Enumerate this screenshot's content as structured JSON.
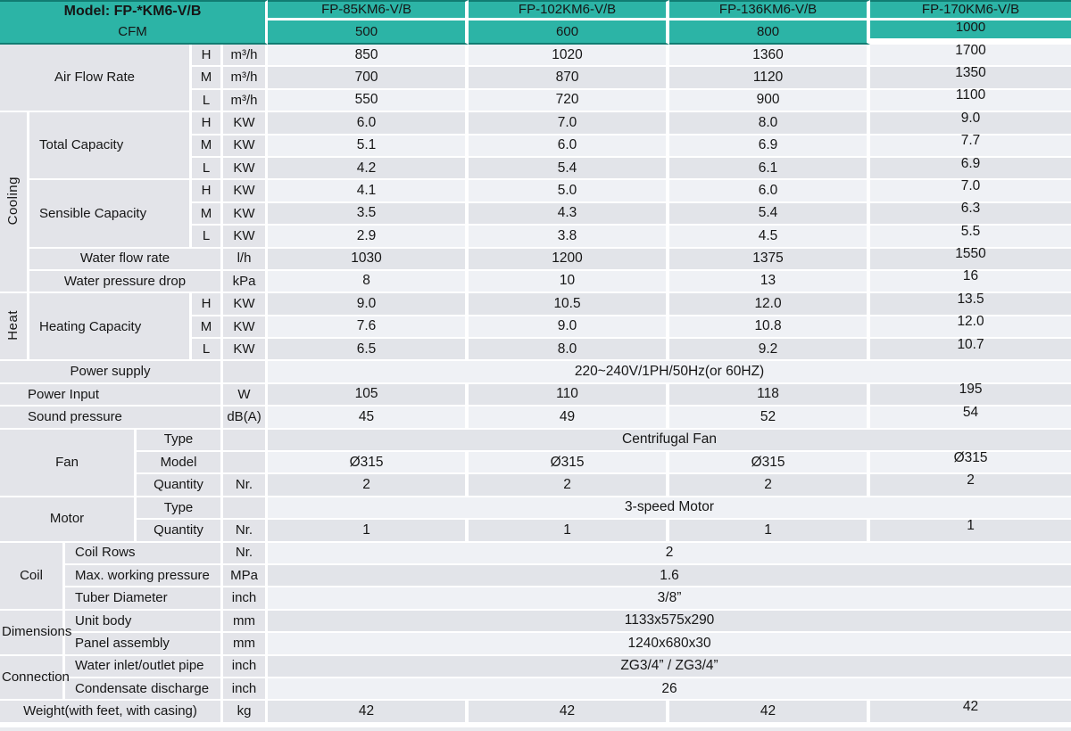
{
  "header": {
    "model_label": "Model: FP-*KM6-V/B",
    "cfm_label": "CFM",
    "models": [
      "FP-85KM6-V/B",
      "FP-102KM6-V/B",
      "FP-136KM6-V/B",
      "FP-170KM6-V/B"
    ],
    "cfm_values": [
      "500",
      "600",
      "800",
      "1000"
    ]
  },
  "colors": {
    "teal": "#2cb4a6",
    "dark_teal_line": "#117c72",
    "label_gray": "#e3e4e9",
    "row_light": "#eff1f5",
    "row_dark": "#e2e4e9"
  },
  "spec_rows": [
    {
      "key": "air-flow-h",
      "shade": "light",
      "cells": [
        {
          "t": "Air Flow Rate",
          "cs": 4,
          "rs": 3,
          "cls": "lab",
          "name": "group-air-flow-rate"
        },
        {
          "t": "H",
          "cls": "lab",
          "name": "speed-h"
        },
        {
          "t": "m³/h",
          "cls": "lab",
          "name": "unit-m3h"
        }
      ],
      "values": [
        "850",
        "1020",
        "1360",
        "1700"
      ]
    },
    {
      "key": "air-flow-m",
      "shade": "dark",
      "cells": [
        {
          "t": "M",
          "cls": "lab",
          "name": "speed-m"
        },
        {
          "t": "m³/h",
          "cls": "lab",
          "name": "unit-m3h"
        }
      ],
      "values": [
        "700",
        "870",
        "1120",
        "1350"
      ]
    },
    {
      "key": "air-flow-l",
      "shade": "light",
      "cells": [
        {
          "t": "L",
          "cls": "lab",
          "name": "speed-l"
        },
        {
          "t": "m³/h",
          "cls": "lab",
          "name": "unit-m3h"
        }
      ],
      "values": [
        "550",
        "720",
        "900",
        "1100"
      ]
    },
    {
      "key": "total-capacity-h",
      "shade": "dark",
      "cells": [
        {
          "t": "Cooling",
          "rs": 8,
          "cls": "lab rot",
          "name": "section-cooling"
        },
        {
          "t": "Total Capacity",
          "cs": 3,
          "rs": 3,
          "cls": "lab tl",
          "name": "group-total-capacity"
        },
        {
          "t": "H",
          "cls": "lab",
          "name": "speed-h"
        },
        {
          "t": "KW",
          "cls": "lab",
          "name": "unit-kw"
        }
      ],
      "values": [
        "6.0",
        "7.0",
        "8.0",
        "9.0"
      ]
    },
    {
      "key": "total-capacity-m",
      "shade": "light",
      "cells": [
        {
          "t": "M",
          "cls": "lab",
          "name": "speed-m"
        },
        {
          "t": "KW",
          "cls": "lab",
          "name": "unit-kw"
        }
      ],
      "values": [
        "5.1",
        "6.0",
        "6.9",
        "7.7"
      ]
    },
    {
      "key": "total-capacity-l",
      "shade": "dark",
      "cells": [
        {
          "t": "L",
          "cls": "lab",
          "name": "speed-l"
        },
        {
          "t": "KW",
          "cls": "lab",
          "name": "unit-kw"
        }
      ],
      "values": [
        "4.2",
        "5.4",
        "6.1",
        "6.9"
      ]
    },
    {
      "key": "sensible-capacity-h",
      "shade": "light",
      "cells": [
        {
          "t": "Sensible Capacity",
          "cs": 3,
          "rs": 3,
          "cls": "lab tl",
          "name": "group-sensible-capacity"
        },
        {
          "t": "H",
          "cls": "lab",
          "name": "speed-h"
        },
        {
          "t": "KW",
          "cls": "lab",
          "name": "unit-kw"
        }
      ],
      "values": [
        "4.1",
        "5.0",
        "6.0",
        "7.0"
      ]
    },
    {
      "key": "sensible-capacity-m",
      "shade": "dark",
      "cells": [
        {
          "t": "M",
          "cls": "lab",
          "name": "speed-m"
        },
        {
          "t": "KW",
          "cls": "lab",
          "name": "unit-kw"
        }
      ],
      "values": [
        "3.5",
        "4.3",
        "5.4",
        "6.3"
      ]
    },
    {
      "key": "sensible-capacity-l",
      "shade": "light",
      "cells": [
        {
          "t": "L",
          "cls": "lab",
          "name": "speed-l"
        },
        {
          "t": "KW",
          "cls": "lab",
          "name": "unit-kw"
        }
      ],
      "values": [
        "2.9",
        "3.8",
        "4.5",
        "5.5"
      ]
    },
    {
      "key": "water-flow-rate",
      "shade": "dark",
      "cells": [
        {
          "t": "Water flow rate",
          "cs": 4,
          "cls": "lab",
          "name": "row-water-flow-rate"
        },
        {
          "t": "l/h",
          "cls": "lab",
          "name": "unit-lh"
        }
      ],
      "values": [
        "1030",
        "1200",
        "1375",
        "1550"
      ]
    },
    {
      "key": "water-pressure-drop",
      "shade": "light",
      "cells": [
        {
          "t": "Water pressure drop",
          "cs": 4,
          "cls": "lab",
          "name": "row-water-pressure-drop"
        },
        {
          "t": "kPa",
          "cls": "lab",
          "name": "unit-kpa"
        }
      ],
      "values": [
        "8",
        "10",
        "13",
        "16"
      ]
    },
    {
      "key": "heating-capacity-h",
      "shade": "dark",
      "cells": [
        {
          "t": "Heat",
          "rs": 3,
          "cls": "lab rot",
          "name": "section-heat"
        },
        {
          "t": "Heating Capacity",
          "cs": 3,
          "rs": 3,
          "cls": "lab tl",
          "name": "group-heating-capacity"
        },
        {
          "t": "H",
          "cls": "lab",
          "name": "speed-h"
        },
        {
          "t": "KW",
          "cls": "lab",
          "name": "unit-kw"
        }
      ],
      "values": [
        "9.0",
        "10.5",
        "12.0",
        "13.5"
      ]
    },
    {
      "key": "heating-capacity-m",
      "shade": "light",
      "cells": [
        {
          "t": "M",
          "cls": "lab",
          "name": "speed-m"
        },
        {
          "t": "KW",
          "cls": "lab",
          "name": "unit-kw"
        }
      ],
      "values": [
        "7.6",
        "9.0",
        "10.8",
        "12.0"
      ]
    },
    {
      "key": "heating-capacity-l",
      "shade": "dark",
      "cells": [
        {
          "t": "L",
          "cls": "lab",
          "name": "speed-l"
        },
        {
          "t": "KW",
          "cls": "lab",
          "name": "unit-kw"
        }
      ],
      "values": [
        "6.5",
        "8.0",
        "9.2",
        "10.7"
      ]
    },
    {
      "key": "power-supply",
      "shade": "light",
      "cells": [
        {
          "t": "Power supply",
          "cs": 5,
          "cls": "lab",
          "name": "row-power-supply"
        },
        {
          "t": "",
          "cls": "lab",
          "name": "unit-empty"
        }
      ],
      "merged": "220~240V/1PH/50Hz(or 60HZ)",
      "merged_name": "value-power-supply"
    },
    {
      "key": "power-input",
      "shade": "dark",
      "cells": [
        {
          "t": "Power Input",
          "cs": 5,
          "cls": "lab tlp",
          "name": "row-power-input"
        },
        {
          "t": "W",
          "cls": "lab",
          "name": "unit-w"
        }
      ],
      "values": [
        "105",
        "110",
        "118",
        "195"
      ]
    },
    {
      "key": "sound-pressure",
      "shade": "light",
      "cells": [
        {
          "t": "Sound pressure",
          "cs": 5,
          "cls": "lab tlp",
          "name": "row-sound-pressure"
        },
        {
          "t": "dB(A)",
          "cls": "lab",
          "name": "unit-dba"
        }
      ],
      "values": [
        "45",
        "49",
        "52",
        "54"
      ]
    },
    {
      "key": "fan-type",
      "shade": "dark",
      "cells": [
        {
          "t": "Fan",
          "cs": 3,
          "rs": 3,
          "cls": "lab",
          "name": "section-fan"
        },
        {
          "t": "Type",
          "cs": 2,
          "cls": "lab",
          "name": "row-fan-type"
        },
        {
          "t": "",
          "cls": "lab",
          "name": "unit-empty"
        }
      ],
      "merged": "Centrifugal Fan",
      "merged_name": "value-fan-type"
    },
    {
      "key": "fan-model",
      "shade": "light",
      "cells": [
        {
          "t": "Model",
          "cs": 2,
          "cls": "lab",
          "name": "row-fan-model"
        },
        {
          "t": "",
          "cls": "lab",
          "name": "unit-empty"
        }
      ],
      "values": [
        "Ø315",
        "Ø315",
        "Ø315",
        "Ø315"
      ]
    },
    {
      "key": "fan-quantity",
      "shade": "dark",
      "cells": [
        {
          "t": "Quantity",
          "cs": 2,
          "cls": "lab",
          "name": "row-fan-quantity"
        },
        {
          "t": "Nr.",
          "cls": "lab",
          "name": "unit-nr"
        }
      ],
      "values": [
        "2",
        "2",
        "2",
        "2"
      ]
    },
    {
      "key": "motor-type",
      "shade": "light",
      "cells": [
        {
          "t": "Motor",
          "cs": 3,
          "rs": 2,
          "cls": "lab",
          "name": "section-motor"
        },
        {
          "t": "Type",
          "cs": 2,
          "cls": "lab",
          "name": "row-motor-type"
        },
        {
          "t": "",
          "cls": "lab",
          "name": "unit-empty"
        }
      ],
      "merged": "3-speed Motor",
      "merged_name": "value-motor-type"
    },
    {
      "key": "motor-quantity",
      "shade": "dark",
      "cells": [
        {
          "t": "Quantity",
          "cs": 2,
          "cls": "lab",
          "name": "row-motor-quantity"
        },
        {
          "t": "Nr.",
          "cls": "lab",
          "name": "unit-nr"
        }
      ],
      "values": [
        "1",
        "1",
        "1",
        "1"
      ]
    },
    {
      "key": "coil-rows",
      "shade": "light",
      "cells": [
        {
          "t": "Coil",
          "cs": 2,
          "rs": 3,
          "cls": "lab",
          "name": "section-coil"
        },
        {
          "t": "Coil Rows",
          "cs": 3,
          "cls": "lab tl",
          "name": "row-coil-rows"
        },
        {
          "t": "Nr.",
          "cls": "lab",
          "name": "unit-nr"
        }
      ],
      "merged": "2",
      "merged_name": "value-coil-rows"
    },
    {
      "key": "max-working-pressure",
      "shade": "dark",
      "cells": [
        {
          "t": "Max. working pressure",
          "cs": 3,
          "cls": "lab tl",
          "name": "row-max-working-pressure"
        },
        {
          "t": "MPa",
          "cls": "lab",
          "name": "unit-mpa"
        }
      ],
      "merged": "1.6",
      "merged_name": "value-max-working-pressure"
    },
    {
      "key": "tuber-diameter",
      "shade": "light",
      "cells": [
        {
          "t": "Tuber Diameter",
          "cs": 3,
          "cls": "lab tl",
          "name": "row-tuber-diameter"
        },
        {
          "t": "inch",
          "cls": "lab",
          "name": "unit-inch"
        }
      ],
      "merged": "3/8”",
      "merged_name": "value-tuber-diameter"
    },
    {
      "key": "unit-body",
      "shade": "dark",
      "cells": [
        {
          "t": "Dimensions",
          "cs": 2,
          "rs": 2,
          "cls": "lab ovf",
          "name": "section-dimensions"
        },
        {
          "t": "Unit body",
          "cs": 3,
          "cls": "lab tl",
          "name": "row-unit-body"
        },
        {
          "t": "mm",
          "cls": "lab",
          "name": "unit-mm"
        }
      ],
      "merged": "1133x575x290",
      "merged_name": "value-unit-body"
    },
    {
      "key": "panel-assembly",
      "shade": "light",
      "cells": [
        {
          "t": "Panel assembly",
          "cs": 3,
          "cls": "lab tl",
          "name": "row-panel-assembly"
        },
        {
          "t": "mm",
          "cls": "lab",
          "name": "unit-mm"
        }
      ],
      "merged": "1240x680x30",
      "merged_name": "value-panel-assembly"
    },
    {
      "key": "water-inlet-outlet-pipe",
      "shade": "dark",
      "cells": [
        {
          "t": "Connection",
          "cs": 2,
          "rs": 2,
          "cls": "lab ovf",
          "name": "section-connection"
        },
        {
          "t": "Water inlet/outlet pipe",
          "cs": 3,
          "cls": "lab tl",
          "name": "row-water-inlet-outlet-pipe"
        },
        {
          "t": "inch",
          "cls": "lab",
          "name": "unit-inch"
        }
      ],
      "merged": "ZG3/4” / ZG3/4”",
      "merged_name": "value-water-inlet-outlet-pipe"
    },
    {
      "key": "condensate-discharge",
      "shade": "light",
      "cells": [
        {
          "t": "Condensate discharge",
          "cs": 3,
          "cls": "lab tl",
          "name": "row-condensate-discharge"
        },
        {
          "t": "inch",
          "cls": "lab",
          "name": "unit-inch"
        }
      ],
      "merged": "26",
      "merged_name": "value-condensate-discharge"
    },
    {
      "key": "weight",
      "shade": "dark",
      "cells": [
        {
          "t": "Weight(with feet, with casing)",
          "cs": 5,
          "cls": "lab",
          "name": "row-weight"
        },
        {
          "t": "kg",
          "cls": "lab",
          "name": "unit-kg"
        }
      ],
      "values": [
        "42",
        "42",
        "42",
        "42"
      ]
    }
  ]
}
